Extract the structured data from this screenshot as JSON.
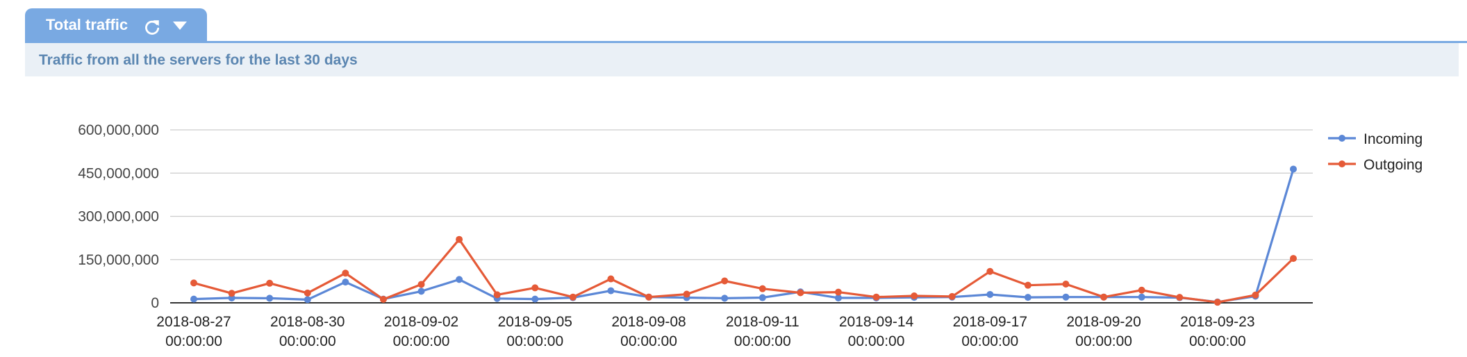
{
  "tab": {
    "title": "Total traffic",
    "refresh_icon": "refresh-icon",
    "menu_icon": "caret-down-icon"
  },
  "subtitle": "Traffic from all the servers for the last 30 days",
  "colors": {
    "accent": "#79a9e2",
    "incoming": "#5b87d6",
    "outgoing": "#e55a37",
    "subtitle_bg": "#eaf0f6",
    "subtitle_text": "#5b86b1"
  },
  "chart_data": {
    "type": "line",
    "x": [
      "2018-08-27 00:00:00",
      "2018-08-28 00:00:00",
      "2018-08-29 00:00:00",
      "2018-08-30 00:00:00",
      "2018-08-31 00:00:00",
      "2018-09-01 00:00:00",
      "2018-09-02 00:00:00",
      "2018-09-03 00:00:00",
      "2018-09-04 00:00:00",
      "2018-09-05 00:00:00",
      "2018-09-06 00:00:00",
      "2018-09-07 00:00:00",
      "2018-09-08 00:00:00",
      "2018-09-09 00:00:00",
      "2018-09-10 00:00:00",
      "2018-09-11 00:00:00",
      "2018-09-12 00:00:00",
      "2018-09-13 00:00:00",
      "2018-09-14 00:00:00",
      "2018-09-15 00:00:00",
      "2018-09-16 00:00:00",
      "2018-09-17 00:00:00",
      "2018-09-18 00:00:00",
      "2018-09-19 00:00:00",
      "2018-09-20 00:00:00",
      "2018-09-21 00:00:00",
      "2018-09-22 00:00:00",
      "2018-09-23 00:00:00",
      "2018-09-24 00:00:00",
      "2018-09-25 00:00:00"
    ],
    "x_tick_labels": [
      [
        "2018-08-27",
        "00:00:00"
      ],
      [
        "2018-08-30",
        "00:00:00"
      ],
      [
        "2018-09-02",
        "00:00:00"
      ],
      [
        "2018-09-05",
        "00:00:00"
      ],
      [
        "2018-09-08",
        "00:00:00"
      ],
      [
        "2018-09-11",
        "00:00:00"
      ],
      [
        "2018-09-14",
        "00:00:00"
      ],
      [
        "2018-09-17",
        "00:00:00"
      ],
      [
        "2018-09-20",
        "00:00:00"
      ],
      [
        "2018-09-23",
        "00:00:00"
      ]
    ],
    "x_tick_index": [
      0,
      3,
      6,
      9,
      12,
      15,
      18,
      21,
      24,
      27
    ],
    "y_ticks": [
      0,
      150000000,
      300000000,
      450000000,
      600000000
    ],
    "y_tick_labels": [
      "0",
      "150,000,000",
      "300,000,000",
      "450,000,000",
      "600,000,000"
    ],
    "ylim": [
      0,
      600000000
    ],
    "grid": true,
    "legend_position": "right",
    "series": [
      {
        "name": "Incoming",
        "color": "#5b87d6",
        "values": [
          13000000,
          17000000,
          16000000,
          11000000,
          72000000,
          13000000,
          40000000,
          81000000,
          15000000,
          13000000,
          18000000,
          42000000,
          20000000,
          18000000,
          16000000,
          18000000,
          38000000,
          17000000,
          17000000,
          19000000,
          20000000,
          29000000,
          19000000,
          20000000,
          20000000,
          20000000,
          18000000,
          3000000,
          23000000,
          464000000
        ]
      },
      {
        "name": "Outgoing",
        "color": "#e55a37",
        "values": [
          69000000,
          33000000,
          68000000,
          34000000,
          103000000,
          12000000,
          64000000,
          220000000,
          28000000,
          52000000,
          20000000,
          83000000,
          20000000,
          30000000,
          76000000,
          49000000,
          35000000,
          37000000,
          20000000,
          24000000,
          22000000,
          109000000,
          61000000,
          65000000,
          20000000,
          44000000,
          19000000,
          2000000,
          27000000,
          154000000
        ]
      }
    ]
  }
}
